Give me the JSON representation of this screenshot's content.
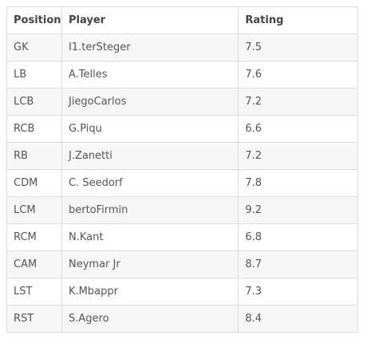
{
  "table": {
    "headers": [
      "Position",
      "Player",
      "Rating"
    ],
    "rows": [
      {
        "position": "GK",
        "player": "I1.terSteger",
        "rating": "7.5"
      },
      {
        "position": "LB",
        "player": "A.Telles",
        "rating": "7.6"
      },
      {
        "position": "LCB",
        "player": "JiegoCarlos",
        "rating": "7.2"
      },
      {
        "position": "RCB",
        "player": "G.Piqu",
        "rating": "6.6"
      },
      {
        "position": "RB",
        "player": "J.Zanetti",
        "rating": "7.2"
      },
      {
        "position": "CDM",
        "player": "C. Seedorf",
        "rating": "7.8"
      },
      {
        "position": "LCM",
        "player": "bertoFirmin",
        "rating": "9.2"
      },
      {
        "position": "RCM",
        "player": "N.Kant",
        "rating": "6.8"
      },
      {
        "position": "CAM",
        "player": "Neymar Jr",
        "rating": "8.7"
      },
      {
        "position": "LST",
        "player": "K.Mbappr",
        "rating": "7.3"
      },
      {
        "position": "RST",
        "player": "S.Agero",
        "rating": "8.4"
      }
    ]
  }
}
